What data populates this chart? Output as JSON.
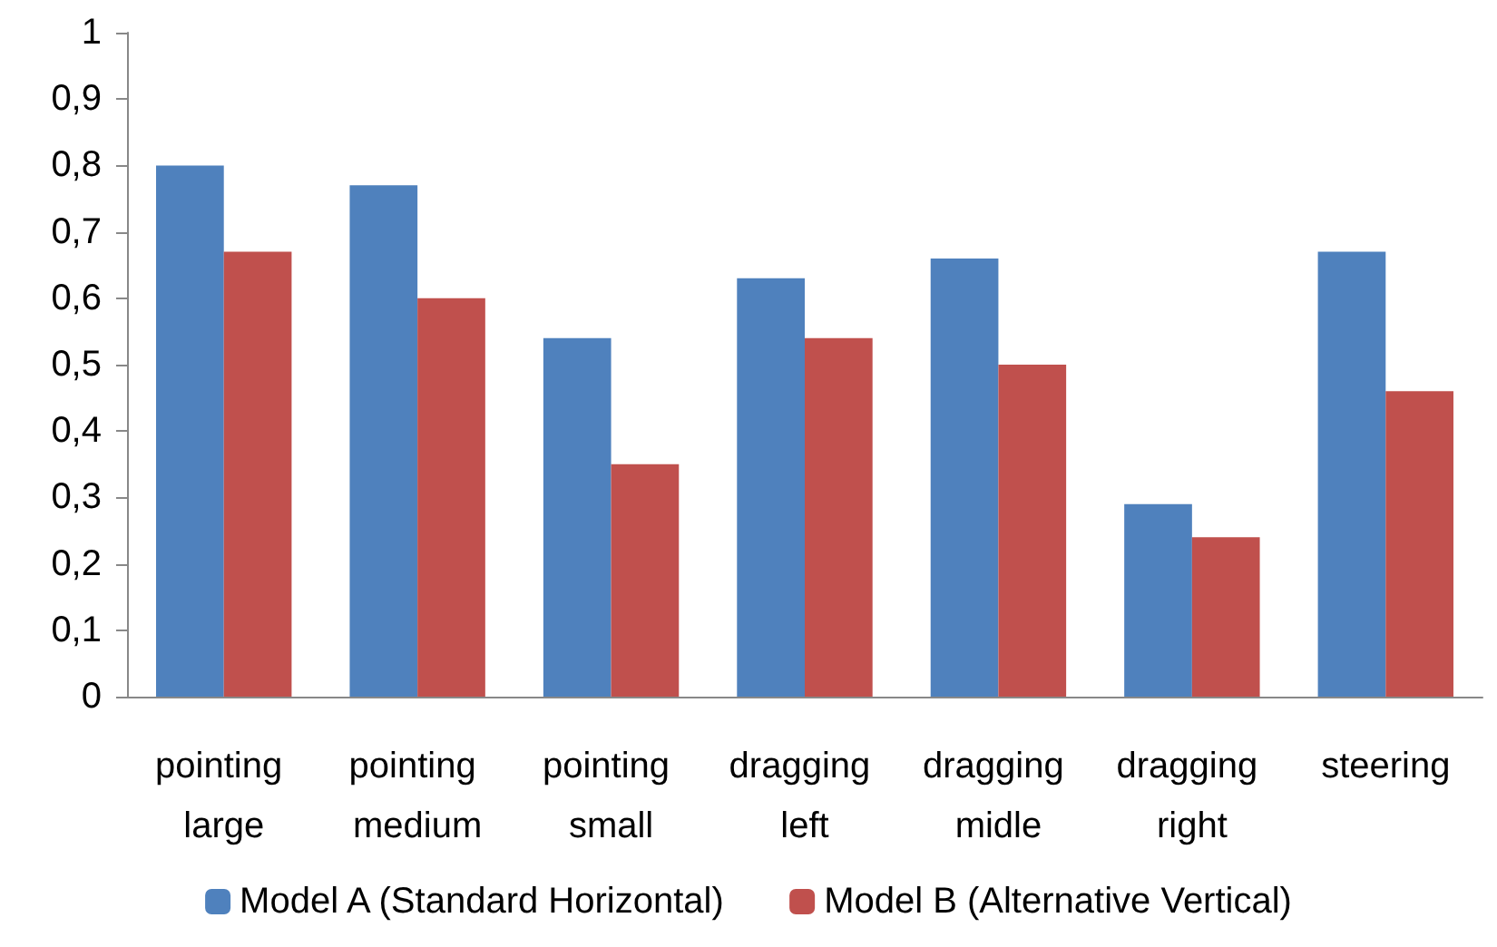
{
  "chart_data": {
    "type": "bar",
    "categories": [
      "pointing large",
      "pointing medium",
      "pointing small",
      "dragging left",
      "dragging midle",
      "dragging right",
      "steering"
    ],
    "series": [
      {
        "name": "Model A (Standard Horizontal)",
        "color": "#4f81bd",
        "values": [
          0.8,
          0.77,
          0.54,
          0.63,
          0.66,
          0.29,
          0.67
        ]
      },
      {
        "name": "Model B (Alternative Vertical)",
        "color": "#c0504d",
        "values": [
          0.67,
          0.6,
          0.35,
          0.54,
          0.5,
          0.24,
          0.46
        ]
      }
    ],
    "ylim": [
      0,
      1
    ],
    "yticks": [
      {
        "value": 0,
        "label": "0"
      },
      {
        "value": 0.1,
        "label": "0,1"
      },
      {
        "value": 0.2,
        "label": "0,2"
      },
      {
        "value": 0.3,
        "label": "0,3"
      },
      {
        "value": 0.4,
        "label": "0,4"
      },
      {
        "value": 0.5,
        "label": "0,5"
      },
      {
        "value": 0.6,
        "label": "0,6"
      },
      {
        "value": 0.7,
        "label": "0,7"
      },
      {
        "value": 0.8,
        "label": "0,8"
      },
      {
        "value": 0.9,
        "label": "0,9"
      },
      {
        "value": 1,
        "label": "1"
      }
    ],
    "grid": false,
    "legend": "bottom"
  }
}
